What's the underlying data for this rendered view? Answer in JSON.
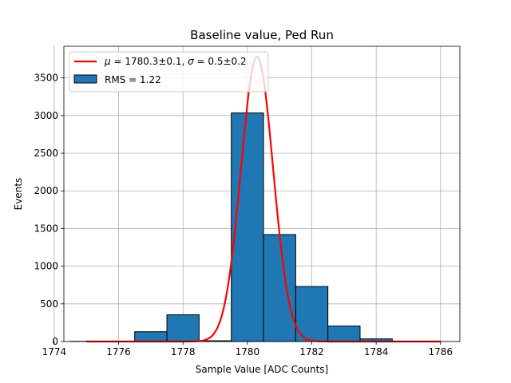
{
  "chart_data": {
    "type": "bar",
    "title": "Baseline value, Ped Run",
    "xlabel": "Sample Value [ADC Counts]",
    "ylabel": "Events",
    "xlim": [
      1774.3,
      1786.6
    ],
    "ylim": [
      0,
      3920
    ],
    "xticks": [
      1774,
      1776,
      1778,
      1780,
      1782,
      1784,
      1786
    ],
    "yticks": [
      0,
      500,
      1000,
      1500,
      2000,
      2500,
      3000,
      3500
    ],
    "grid": true,
    "legend_position": "upper left",
    "bin_width": 1.0,
    "histogram": {
      "name": "RMS = 1.22",
      "color": "#1f77b4",
      "edgecolor": "#000000",
      "bins": [
        {
          "left": 1774.5,
          "count": 2
        },
        {
          "left": 1775.5,
          "count": 5
        },
        {
          "left": 1776.5,
          "count": 130
        },
        {
          "left": 1777.5,
          "count": 355
        },
        {
          "left": 1778.5,
          "count": 10
        },
        {
          "left": 1779.5,
          "count": 3035
        },
        {
          "left": 1780.5,
          "count": 1420
        },
        {
          "left": 1781.5,
          "count": 730
        },
        {
          "left": 1782.5,
          "count": 205
        },
        {
          "left": 1783.5,
          "count": 35
        },
        {
          "left": 1784.5,
          "count": 3
        }
      ]
    },
    "fit": {
      "name": "μ = 1780.3±0.1, σ = 0.5±0.2",
      "legend_parts": {
        "mu_symbol": "μ",
        "mu_text": " = 1780.3±0.1, ",
        "sigma_symbol": "σ",
        "sigma_text": " = 0.5±0.2"
      },
      "type": "gaussian",
      "color": "#ff0000",
      "mu": 1780.3,
      "sigma": 0.5,
      "amplitude": 3780,
      "x_range": [
        1775,
        1786
      ]
    }
  }
}
